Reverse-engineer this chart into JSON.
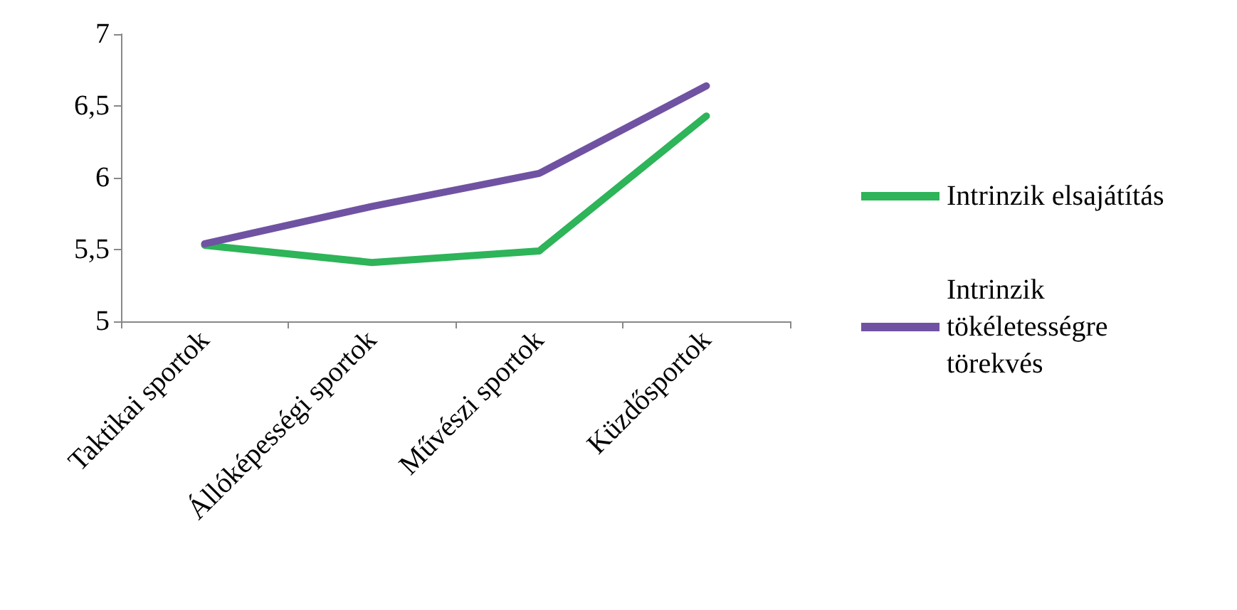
{
  "chart_data": {
    "type": "line",
    "categories": [
      "Taktikai sportok",
      "Állóképességi sportok",
      "Művészi sportok",
      "Küzdősportok"
    ],
    "series": [
      {
        "name": "Intrinzik elsajátítás",
        "color": "#2eb459",
        "values": [
          5.53,
          5.41,
          5.49,
          6.43
        ]
      },
      {
        "name": "Intrinzik tökéletességre törekvés",
        "color": "#7052a2",
        "values": [
          5.54,
          5.8,
          6.03,
          6.64
        ]
      }
    ],
    "ylim": [
      5,
      7
    ],
    "yticks": [
      5,
      {
        "value": 5.5,
        "label": "5,5"
      },
      6,
      {
        "value": 6.5,
        "label": "6,5"
      },
      7
    ],
    "grid": false,
    "legend": "right",
    "marker": "none",
    "line_style": "solid"
  }
}
